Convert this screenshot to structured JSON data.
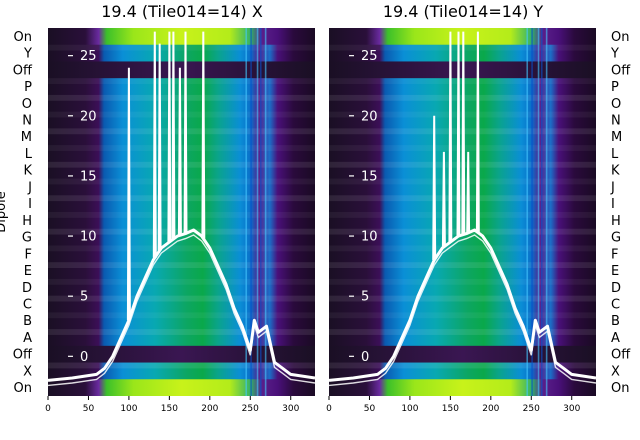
{
  "chart_data": [
    {
      "type": "heatmap",
      "title": "19.4 (Tile014=14) X",
      "ylabel": "Dipole",
      "row_labels": [
        "On",
        "Y",
        "Off",
        "P",
        "O",
        "N",
        "M",
        "L",
        "K",
        "J",
        "I",
        "H",
        "G",
        "F",
        "E",
        "D",
        "C",
        "B",
        "A",
        "Off",
        "X",
        "On"
      ],
      "xlim": [
        0,
        330
      ],
      "x_ticks": [
        0,
        50,
        100,
        150,
        200,
        250,
        300
      ],
      "overlay_ylim": [
        -3.3,
        27.3
      ],
      "overlay_ticks": [
        0,
        5,
        10,
        15,
        20,
        25
      ],
      "overlay_curve": {
        "x": [
          0,
          30,
          60,
          70,
          80,
          90,
          100,
          110,
          120,
          130,
          140,
          150,
          160,
          170,
          180,
          190,
          200,
          210,
          220,
          230,
          240,
          250,
          255,
          260,
          270,
          280,
          290,
          300,
          330
        ],
        "y": [
          -2.0,
          -1.8,
          -1.5,
          -1.0,
          0.0,
          1.5,
          3.0,
          5.0,
          6.5,
          8.0,
          9.0,
          9.5,
          10.0,
          10.2,
          10.5,
          10.0,
          9.0,
          7.5,
          6.0,
          4.0,
          2.5,
          0.5,
          3.0,
          2.0,
          2.5,
          -0.5,
          -1.0,
          -1.5,
          -1.8
        ]
      },
      "overlay_spikes": [
        {
          "x": 100,
          "y": 24
        },
        {
          "x": 132,
          "y": 27
        },
        {
          "x": 138,
          "y": 26
        },
        {
          "x": 150,
          "y": 27
        },
        {
          "x": 155,
          "y": 27
        },
        {
          "x": 163,
          "y": 24
        },
        {
          "x": 170,
          "y": 27
        },
        {
          "x": 192,
          "y": 27
        }
      ]
    },
    {
      "type": "heatmap",
      "title": "19.4 (Tile014=14) Y",
      "row_labels": [
        "On",
        "Y",
        "Off",
        "P",
        "O",
        "N",
        "M",
        "L",
        "K",
        "J",
        "I",
        "H",
        "G",
        "F",
        "E",
        "D",
        "C",
        "B",
        "A",
        "Off",
        "X",
        "On"
      ],
      "xlim": [
        0,
        330
      ],
      "x_ticks": [
        0,
        50,
        100,
        150,
        200,
        250,
        300
      ],
      "overlay_ylim": [
        -3.3,
        27.3
      ],
      "overlay_ticks": [
        0,
        5,
        10,
        15,
        20,
        25
      ],
      "overlay_curve": {
        "x": [
          0,
          30,
          60,
          70,
          80,
          90,
          100,
          110,
          120,
          130,
          140,
          150,
          160,
          170,
          180,
          190,
          200,
          210,
          220,
          230,
          240,
          250,
          255,
          260,
          270,
          280,
          290,
          300,
          330
        ],
        "y": [
          -2.0,
          -1.8,
          -1.5,
          -1.0,
          0.0,
          1.5,
          3.0,
          5.0,
          6.5,
          8.0,
          9.0,
          9.5,
          10.0,
          10.2,
          10.5,
          10.0,
          9.0,
          7.5,
          6.0,
          4.0,
          2.5,
          0.5,
          3.0,
          2.0,
          2.5,
          -0.5,
          -1.0,
          -1.5,
          -1.8
        ]
      },
      "overlay_spikes": [
        {
          "x": 130,
          "y": 20
        },
        {
          "x": 142,
          "y": 17
        },
        {
          "x": 150,
          "y": 27
        },
        {
          "x": 160,
          "y": 27
        },
        {
          "x": 166,
          "y": 27
        },
        {
          "x": 172,
          "y": 17
        },
        {
          "x": 184,
          "y": 27
        }
      ]
    }
  ],
  "colors": {
    "curve": "#ffffff",
    "background": "#ffffff"
  }
}
